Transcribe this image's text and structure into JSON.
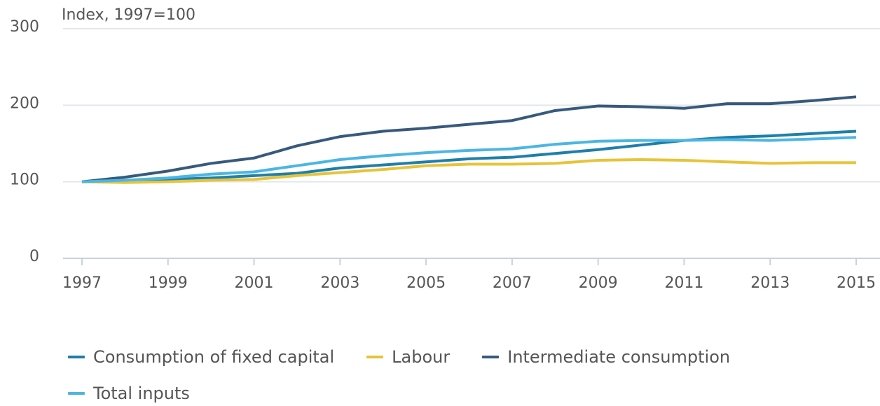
{
  "chart_data": {
    "type": "line",
    "y_axis_label": "Index, 1997=100",
    "x": [
      1997,
      1998,
      1999,
      2000,
      2001,
      2002,
      2003,
      2004,
      2005,
      2006,
      2007,
      2008,
      2009,
      2010,
      2011,
      2012,
      2013,
      2014,
      2015
    ],
    "series": [
      {
        "name": "Consumption of fixed capital",
        "color": "#1f7fa9",
        "values": [
          100,
          101,
          103,
          105,
          108,
          111,
          118,
          122,
          126,
          130,
          132,
          137,
          142,
          148,
          154,
          158,
          160,
          163,
          166
        ]
      },
      {
        "name": "Labour",
        "color": "#e6c43a",
        "values": [
          100,
          99,
          100,
          102,
          103,
          108,
          112,
          116,
          121,
          123,
          123,
          124,
          128,
          129,
          128,
          126,
          124,
          125,
          125
        ]
      },
      {
        "name": "Intermediate consumption",
        "color": "#375a7c",
        "values": [
          100,
          106,
          114,
          124,
          131,
          147,
          159,
          166,
          170,
          175,
          180,
          193,
          199,
          198,
          196,
          202,
          202,
          206,
          211
        ]
      },
      {
        "name": "Total inputs",
        "color": "#4cb6e2",
        "values": [
          100,
          102,
          105,
          110,
          113,
          121,
          129,
          134,
          138,
          141,
          143,
          149,
          153,
          154,
          154,
          155,
          154,
          156,
          158
        ]
      }
    ],
    "xlim": [
      1997,
      2015
    ],
    "xticks": [
      1997,
      1999,
      2001,
      2003,
      2005,
      2007,
      2009,
      2011,
      2013,
      2015
    ],
    "ylim": [
      0,
      300
    ],
    "yticks": [
      0,
      100,
      200,
      300
    ],
    "grid": true
  }
}
